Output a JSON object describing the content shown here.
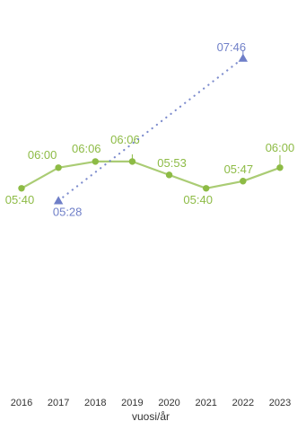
{
  "chart_data": {
    "type": "line",
    "title": "",
    "xlabel": "vuosi/år",
    "ylabel": "",
    "grid": false,
    "legend": "none",
    "categories": [
      "2016",
      "2017",
      "2018",
      "2019",
      "2020",
      "2021",
      "2022",
      "2023"
    ],
    "ylim": [
      "05:00",
      "09:00"
    ],
    "series": [
      {
        "style": "solid",
        "marker": "circle",
        "color": "#8dbb45",
        "x": [
          "2016",
          "2017",
          "2018",
          "2019",
          "2020",
          "2021",
          "2022",
          "2023"
        ],
        "values": [
          "05:40",
          "06:00",
          "06:06",
          "06:06",
          "05:53",
          "05:40",
          "05:47",
          "06:00"
        ],
        "labels": [
          "05:40",
          "06:00",
          "06:06",
          "06:06",
          "05:53",
          "05:40",
          "05:47",
          "06:00"
        ]
      },
      {
        "style": "dotted",
        "marker": "triangle",
        "color": "#6f7fc8",
        "x": [
          "2017",
          "2022"
        ],
        "values": [
          "05:28",
          "07:46"
        ],
        "labels": [
          "05:28",
          "07:46"
        ]
      }
    ]
  }
}
